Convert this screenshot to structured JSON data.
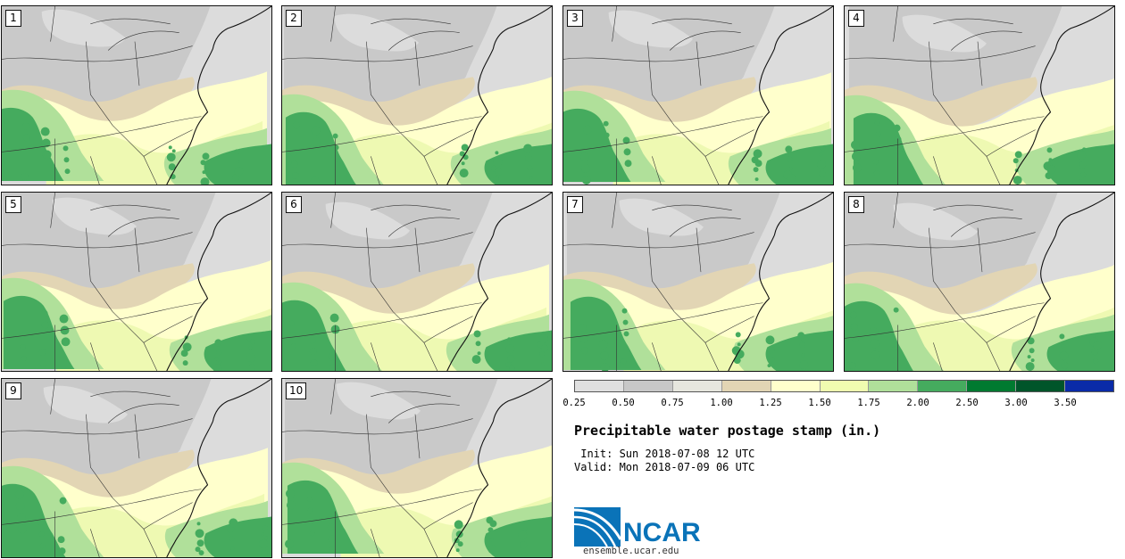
{
  "title": "Precipitable water postage stamp (in.)",
  "init": " Init: Sun 2018-07-08 12 UTC",
  "valid": "Valid: Mon 2018-07-09 06 UTC",
  "brand": {
    "name": "NCAR",
    "url": "ensemble.ucar.edu",
    "blue": "#0a73b8"
  },
  "members": [
    {
      "label": "1"
    },
    {
      "label": "2"
    },
    {
      "label": "3"
    },
    {
      "label": "4"
    },
    {
      "label": "5"
    },
    {
      "label": "6"
    },
    {
      "label": "7"
    },
    {
      "label": "8"
    },
    {
      "label": "9"
    },
    {
      "label": "10"
    }
  ],
  "colorbar": {
    "ticks": [
      "0.25",
      "0.50",
      "0.75",
      "1.00",
      "1.25",
      "1.50",
      "1.75",
      "2.00",
      "2.50",
      "3.00",
      "3.50"
    ],
    "colors": [
      "#e0e0e0",
      "#c8c8c8",
      "#e6e6de",
      "#e2d5b4",
      "#ffffcc",
      "#f0fcb0",
      "#b0e09a",
      "#45ab5e",
      "#007a30",
      "#00552a",
      "#0a2ba8"
    ]
  },
  "map_colors": {
    "gray": "#c9c9c9",
    "lightgray": "#dcdcdc",
    "tan": "#e2d5b4",
    "cream": "#ffffcc",
    "lightgreen": "#eef9b2",
    "midgreen": "#b0e09a",
    "green": "#45ab5e"
  }
}
